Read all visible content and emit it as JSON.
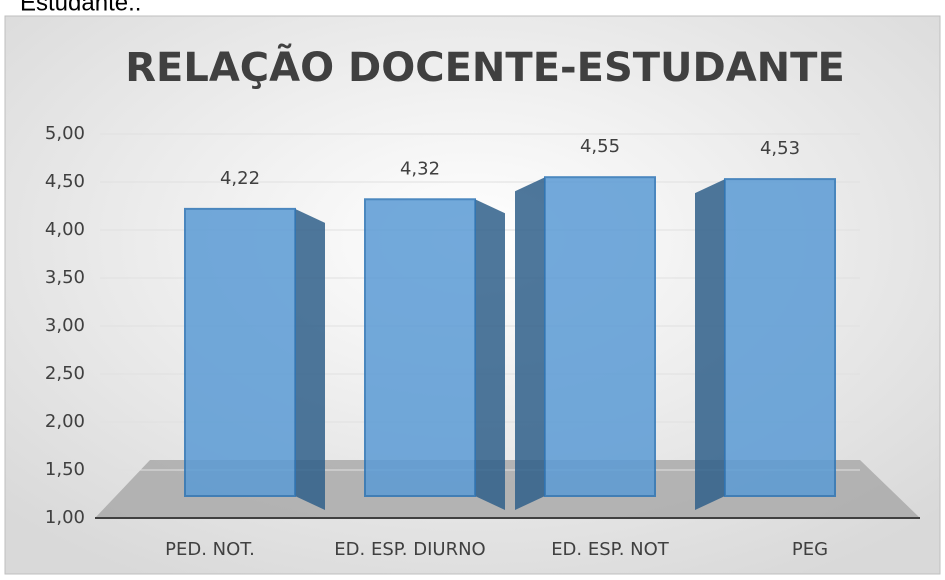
{
  "header_text": "Estudante.:",
  "chart_data": {
    "type": "bar3d",
    "title": "RELAÇÃO DOCENTE-ESTUDANTE",
    "categories": [
      "PED. NOT.",
      "ED. ESP. DIURNO",
      "ED. ESP. NOT",
      "PEG"
    ],
    "values": [
      4.22,
      4.32,
      4.55,
      4.53
    ],
    "value_labels": [
      "4,22",
      "4,32",
      "4,55",
      "4,53"
    ],
    "color": "#5b9bd5",
    "ylim": [
      1,
      5
    ],
    "yticks": [
      {
        "value": 1,
        "label": "1,00"
      },
      {
        "value": 1.5,
        "label": "1,50"
      },
      {
        "value": 2,
        "label": "2,00"
      },
      {
        "value": 2.5,
        "label": "2,50"
      },
      {
        "value": 3,
        "label": "3,00"
      },
      {
        "value": 3.5,
        "label": "3,50"
      },
      {
        "value": 4,
        "label": "4,00"
      },
      {
        "value": 4.5,
        "label": "4,50"
      },
      {
        "value": 5,
        "label": "5,00"
      }
    ],
    "grid": true
  }
}
